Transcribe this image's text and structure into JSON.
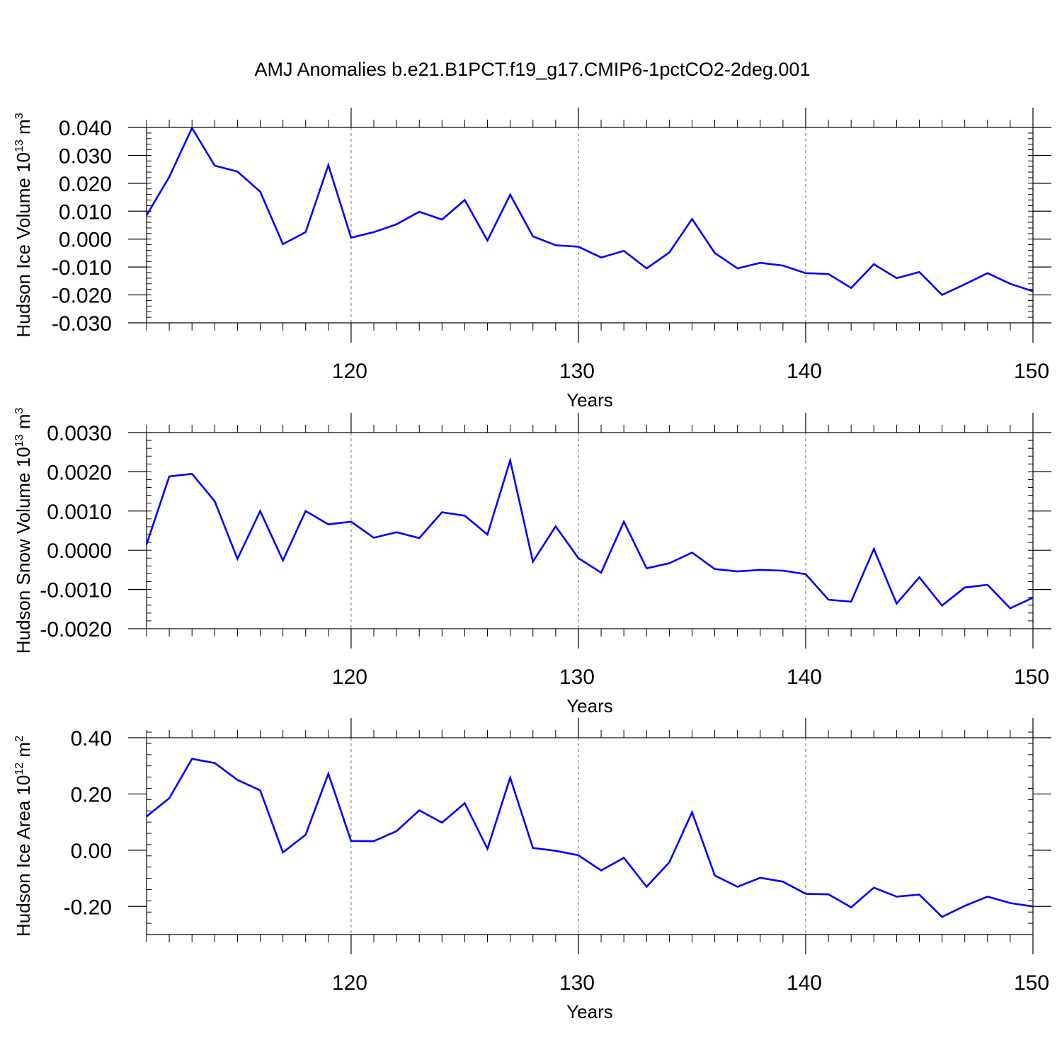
{
  "title": "AMJ Anomalies b.e21.B1PCT.f19_g17.CMIP6-1pctCO2-2deg.001",
  "colors": {
    "line": "#0000ff",
    "axes": "#000000",
    "grid": "#000000"
  },
  "chart_data": [
    {
      "type": "line",
      "name": "ice-volume",
      "ylabel_main": "Hudson Ice Volume 10",
      "ylabel_exp": "13",
      "ylabel_unit": " m",
      "ylabel_unit_exp": "3",
      "xlabel": "Years",
      "xlim": [
        111,
        150
      ],
      "ylim": [
        -0.03,
        0.04
      ],
      "xticks": [
        120,
        130,
        140,
        150
      ],
      "xtick_labels": [
        "120",
        "130",
        "140",
        "150"
      ],
      "yticks": [
        -0.03,
        -0.02,
        -0.01,
        0.0,
        0.01,
        0.02,
        0.03,
        0.04
      ],
      "ytick_labels": [
        "-0.030",
        "-0.020",
        "-0.010",
        "0.000",
        "0.010",
        "0.020",
        "0.030",
        "0.040"
      ],
      "yminor_step": 0.002,
      "grid_x": [
        120,
        130,
        140
      ],
      "x": [
        111,
        112,
        113,
        114,
        115,
        116,
        117,
        118,
        119,
        120,
        121,
        122,
        123,
        124,
        125,
        126,
        127,
        128,
        129,
        130,
        131,
        132,
        133,
        134,
        135,
        136,
        137,
        138,
        139,
        140,
        141,
        142,
        143,
        144,
        145,
        146,
        147,
        148,
        149,
        150
      ],
      "values": [
        0.0085,
        0.0223,
        0.0398,
        0.0263,
        0.0242,
        0.017,
        -0.0018,
        0.0025,
        0.0265,
        0.0005,
        0.0025,
        0.0053,
        0.0098,
        0.007,
        0.014,
        -0.0005,
        0.0159,
        0.001,
        -0.0022,
        -0.0027,
        -0.0066,
        -0.0042,
        -0.0105,
        -0.0048,
        0.0072,
        -0.005,
        -0.0105,
        -0.0085,
        -0.0095,
        -0.0122,
        -0.0125,
        -0.0175,
        -0.009,
        -0.014,
        -0.0118,
        -0.02,
        -0.0162,
        -0.0122,
        -0.016,
        -0.0187
      ]
    },
    {
      "type": "line",
      "name": "snow-volume",
      "ylabel_main": "Hudson Snow Volume 10",
      "ylabel_exp": "13",
      "ylabel_unit": " m",
      "ylabel_unit_exp": "3",
      "xlabel": "Years",
      "xlim": [
        111,
        150
      ],
      "ylim": [
        -0.002,
        0.003
      ],
      "xticks": [
        120,
        130,
        140,
        150
      ],
      "xtick_labels": [
        "120",
        "130",
        "140",
        "150"
      ],
      "yticks": [
        -0.002,
        -0.001,
        0.0,
        0.001,
        0.002,
        0.003
      ],
      "ytick_labels": [
        "-0.0020",
        "-0.0010",
        "0.0000",
        "0.0010",
        "0.0020",
        "0.0030"
      ],
      "yminor_step": 0.0002,
      "grid_x": [
        120,
        130,
        140
      ],
      "x": [
        111,
        112,
        113,
        114,
        115,
        116,
        117,
        118,
        119,
        120,
        121,
        122,
        123,
        124,
        125,
        126,
        127,
        128,
        129,
        130,
        131,
        132,
        133,
        134,
        135,
        136,
        137,
        138,
        139,
        140,
        141,
        142,
        143,
        144,
        145,
        146,
        147,
        148,
        149,
        150
      ],
      "values": [
        0.00015,
        0.00188,
        0.00195,
        0.00125,
        -0.00022,
        0.001,
        -0.00026,
        0.001,
        0.00066,
        0.00073,
        0.00032,
        0.00046,
        0.00031,
        0.00097,
        0.00088,
        0.0004,
        0.00229,
        -0.00029,
        0.00061,
        -0.0002,
        -0.00057,
        0.00073,
        -0.00046,
        -0.00033,
        -6e-05,
        -0.00048,
        -0.00054,
        -0.0005,
        -0.00052,
        -0.00061,
        -0.00126,
        -0.00131,
        3e-05,
        -0.00136,
        -0.00069,
        -0.00141,
        -0.00095,
        -0.00088,
        -0.00148,
        -0.00121
      ]
    },
    {
      "type": "line",
      "name": "ice-area",
      "ylabel_main": "Hudson Ice Area 10",
      "ylabel_exp": "12",
      "ylabel_unit": " m",
      "ylabel_unit_exp": "2",
      "xlabel": "Years",
      "xlim": [
        111,
        150
      ],
      "ylim": [
        -0.3,
        0.4
      ],
      "xticks": [
        120,
        130,
        140,
        150
      ],
      "xtick_labels": [
        "120",
        "130",
        "140",
        "150"
      ],
      "yticks": [
        -0.2,
        0.0,
        0.2,
        0.4
      ],
      "ytick_labels": [
        "-0.20",
        "0.00",
        "0.20",
        "0.40"
      ],
      "yminor_step": 0.04,
      "grid_x": [
        120,
        130,
        140
      ],
      "x": [
        111,
        112,
        113,
        114,
        115,
        116,
        117,
        118,
        119,
        120,
        121,
        122,
        123,
        124,
        125,
        126,
        127,
        128,
        129,
        130,
        131,
        132,
        133,
        134,
        135,
        136,
        137,
        138,
        139,
        140,
        141,
        142,
        143,
        144,
        145,
        146,
        147,
        148,
        149,
        150
      ],
      "values": [
        0.12,
        0.185,
        0.325,
        0.31,
        0.25,
        0.213,
        -0.008,
        0.055,
        0.272,
        0.033,
        0.032,
        0.068,
        0.142,
        0.098,
        0.167,
        0.005,
        0.258,
        0.008,
        -0.002,
        -0.018,
        -0.072,
        -0.027,
        -0.13,
        -0.043,
        0.135,
        -0.09,
        -0.13,
        -0.098,
        -0.112,
        -0.155,
        -0.157,
        -0.203,
        -0.133,
        -0.165,
        -0.158,
        -0.237,
        -0.198,
        -0.165,
        -0.188,
        -0.2
      ]
    }
  ]
}
